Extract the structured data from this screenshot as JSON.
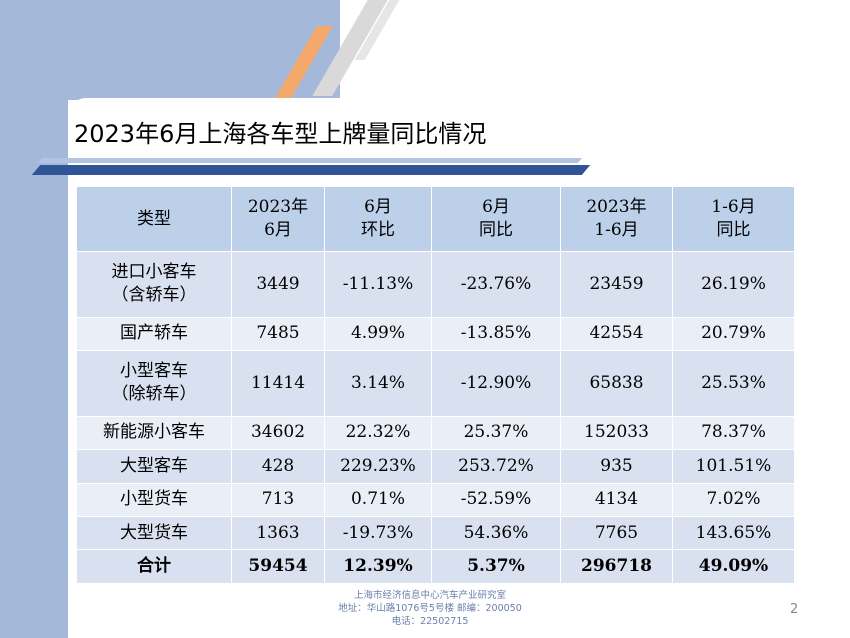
{
  "slide": {
    "title": "2023年6月上海各车型上牌量同比情况",
    "page_number": "2"
  },
  "table": {
    "headers": [
      [
        "类型"
      ],
      [
        "2023年",
        "6月"
      ],
      [
        "6月",
        "环比"
      ],
      [
        "6月",
        "同比"
      ],
      [
        "2023年",
        "1-6月"
      ],
      [
        "1-6月",
        "同比"
      ]
    ],
    "rows": [
      {
        "type": [
          "进口小客车",
          "（含轿车）"
        ],
        "jun_2023": "3449",
        "jun_mom": "-11.13%",
        "jun_yoy": "-23.76%",
        "h1_2023": "23459",
        "h1_yoy": "26.19%"
      },
      {
        "type": [
          "国产轿车"
        ],
        "jun_2023": "7485",
        "jun_mom": "4.99%",
        "jun_yoy": "-13.85%",
        "h1_2023": "42554",
        "h1_yoy": "20.79%"
      },
      {
        "type": [
          "小型客车",
          "（除轿车）"
        ],
        "jun_2023": "11414",
        "jun_mom": "3.14%",
        "jun_yoy": "-12.90%",
        "h1_2023": "65838",
        "h1_yoy": "25.53%"
      },
      {
        "type": [
          "新能源小客车"
        ],
        "jun_2023": "34602",
        "jun_mom": "22.32%",
        "jun_yoy": "25.37%",
        "h1_2023": "152033",
        "h1_yoy": "78.37%"
      },
      {
        "type": [
          "大型客车"
        ],
        "jun_2023": "428",
        "jun_mom": "229.23%",
        "jun_yoy": "253.72%",
        "h1_2023": "935",
        "h1_yoy": "101.51%"
      },
      {
        "type": [
          "小型货车"
        ],
        "jun_2023": "713",
        "jun_mom": "0.71%",
        "jun_yoy": "-52.59%",
        "h1_2023": "4134",
        "h1_yoy": "7.02%"
      },
      {
        "type": [
          "大型货车"
        ],
        "jun_2023": "1363",
        "jun_mom": "-19.73%",
        "jun_yoy": "54.36%",
        "h1_2023": "7765",
        "h1_yoy": "143.65%"
      },
      {
        "type": [
          "合计"
        ],
        "jun_2023": "59454",
        "jun_mom": "12.39%",
        "jun_yoy": "5.37%",
        "h1_2023": "296718",
        "h1_yoy": "49.09%",
        "total": true
      }
    ]
  },
  "footer": {
    "line1": "上海市经济信息中心汽车产业研究室",
    "line2": "地址：华山路1076号5号楼    邮编：200050",
    "line3": "电话：22502715"
  },
  "colors": {
    "header_fill": "#bdd0ea",
    "row_fill_dark": "#d9e1f0",
    "row_fill_light": "#eaeef6",
    "accent_blue": "#2f5597",
    "accent_orange": "#f5a86b",
    "side_band": "#a4b8d9"
  }
}
